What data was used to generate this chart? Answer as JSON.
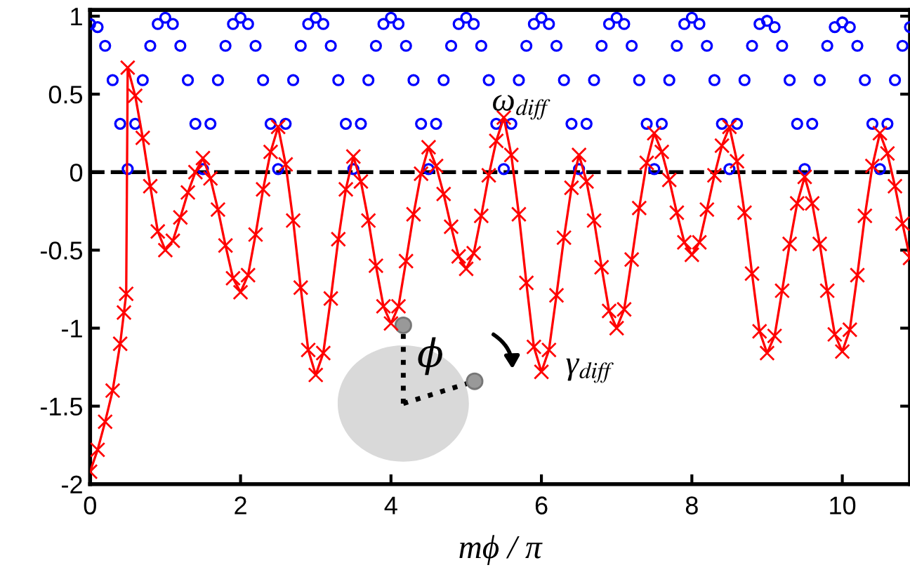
{
  "chart_data": {
    "type": "line",
    "xlabel": "mϕ / π",
    "xlim": [
      0,
      10.9
    ],
    "ylim": [
      -2,
      1.04
    ],
    "xticks": [
      0,
      2,
      4,
      6,
      8,
      10
    ],
    "yticks": [
      -2,
      -1.5,
      -1,
      -0.5,
      0,
      0.5,
      1
    ],
    "grid": false,
    "legend": false,
    "series": [
      {
        "type": "scatter",
        "marker": "circle",
        "color": "#0000ff",
        "x": [
          0,
          0.1,
          0.2,
          0.3,
          0.4,
          0.5,
          0.6,
          0.7,
          0.8,
          0.9,
          1,
          1.1,
          1.2,
          1.3,
          1.4,
          1.5,
          1.6,
          1.7,
          1.8,
          1.9,
          2,
          2.1,
          2.2,
          2.3,
          2.4,
          2.5,
          2.6,
          2.7,
          2.8,
          2.9,
          3,
          3.1,
          3.2,
          3.3,
          3.4,
          3.5,
          3.6,
          3.7,
          3.8,
          3.9,
          4,
          4.1,
          4.2,
          4.3,
          4.4,
          4.5,
          4.6,
          4.7,
          4.8,
          4.9,
          5,
          5.1,
          5.2,
          5.3,
          5.4,
          5.5,
          5.6,
          5.7,
          5.8,
          5.9,
          6,
          6.1,
          6.2,
          6.3,
          6.4,
          6.5,
          6.6,
          6.7,
          6.8,
          6.9,
          7,
          7.1,
          7.2,
          7.3,
          7.4,
          7.5,
          7.6,
          7.7,
          7.8,
          7.9,
          8,
          8.1,
          8.2,
          8.3,
          8.4,
          8.5,
          8.6,
          8.7,
          8.8,
          8.9,
          9,
          9.1,
          9.2,
          9.3,
          9.4,
          9.5,
          9.6,
          9.7,
          9.8,
          9.9,
          10,
          10.1,
          10.2,
          10.3,
          10.4,
          10.5,
          10.6,
          10.7,
          10.8,
          10.9
        ],
        "values": [
          0.95,
          0.93,
          0.81,
          0.59,
          0.31,
          0.02,
          0.31,
          0.59,
          0.81,
          0.95,
          0.99,
          0.95,
          0.81,
          0.59,
          0.31,
          0.02,
          0.31,
          0.59,
          0.81,
          0.95,
          0.99,
          0.95,
          0.81,
          0.59,
          0.31,
          0.02,
          0.31,
          0.59,
          0.81,
          0.95,
          0.99,
          0.95,
          0.81,
          0.59,
          0.31,
          0.02,
          0.31,
          0.59,
          0.81,
          0.95,
          0.99,
          0.95,
          0.81,
          0.59,
          0.31,
          0.02,
          0.31,
          0.59,
          0.81,
          0.95,
          0.99,
          0.95,
          0.81,
          0.59,
          0.31,
          0.02,
          0.31,
          0.59,
          0.81,
          0.95,
          0.99,
          0.95,
          0.81,
          0.59,
          0.31,
          0.02,
          0.31,
          0.59,
          0.81,
          0.95,
          0.99,
          0.95,
          0.81,
          0.59,
          0.31,
          0.02,
          0.31,
          0.59,
          0.81,
          0.95,
          0.99,
          0.95,
          0.81,
          0.59,
          0.31,
          0.02,
          0.31,
          0.59,
          0.81,
          0.95,
          0.97,
          0.93,
          0.81,
          0.59,
          0.31,
          0.02,
          0.31,
          0.59,
          0.81,
          0.93,
          0.96,
          0.93,
          0.81,
          0.59,
          0.31,
          0.02,
          0.31,
          0.59,
          0.81,
          0.93
        ]
      },
      {
        "marker": "cross",
        "line_style": "solid",
        "color": "#ff0000",
        "x": [
          0,
          0.1,
          0.2,
          0.3,
          0.4,
          0.45,
          0.48,
          0.5,
          0.6,
          0.7,
          0.8,
          0.9,
          1,
          1.1,
          1.2,
          1.3,
          1.4,
          1.5,
          1.6,
          1.7,
          1.8,
          1.9,
          2,
          2.1,
          2.2,
          2.3,
          2.4,
          2.5,
          2.6,
          2.7,
          2.8,
          2.9,
          3,
          3.1,
          3.2,
          3.3,
          3.4,
          3.5,
          3.6,
          3.7,
          3.8,
          3.9,
          4,
          4.1,
          4.2,
          4.3,
          4.4,
          4.5,
          4.6,
          4.7,
          4.8,
          4.9,
          5,
          5.1,
          5.2,
          5.3,
          5.4,
          5.5,
          5.6,
          5.7,
          5.8,
          5.9,
          6,
          6.1,
          6.2,
          6.3,
          6.4,
          6.5,
          6.6,
          6.7,
          6.8,
          6.9,
          7,
          7.1,
          7.2,
          7.3,
          7.4,
          7.5,
          7.6,
          7.7,
          7.8,
          7.9,
          8,
          8.1,
          8.2,
          8.3,
          8.4,
          8.5,
          8.6,
          8.7,
          8.8,
          8.9,
          9,
          9.1,
          9.2,
          9.3,
          9.4,
          9.5,
          9.6,
          9.7,
          9.8,
          9.9,
          10,
          10.1,
          10.2,
          10.3,
          10.4,
          10.5,
          10.6,
          10.7,
          10.8,
          10.9
        ],
        "values": [
          -1.92,
          -1.78,
          -1.6,
          -1.4,
          -1.1,
          -0.9,
          -0.78,
          0.67,
          0.49,
          0.22,
          -0.09,
          -0.38,
          -0.5,
          -0.44,
          -0.29,
          -0.13,
          0.0,
          0.09,
          -0.04,
          -0.24,
          -0.47,
          -0.68,
          -0.77,
          -0.66,
          -0.4,
          -0.11,
          0.13,
          0.29,
          0.05,
          -0.31,
          -0.74,
          -1.14,
          -1.3,
          -1.16,
          -0.81,
          -0.43,
          -0.11,
          0.1,
          -0.06,
          -0.31,
          -0.6,
          -0.86,
          -0.97,
          -0.86,
          -0.57,
          -0.27,
          -0.01,
          0.16,
          0.04,
          -0.14,
          -0.35,
          -0.54,
          -0.62,
          -0.52,
          -0.28,
          -0.02,
          0.2,
          0.35,
          0.11,
          -0.27,
          -0.71,
          -1.12,
          -1.28,
          -1.14,
          -0.79,
          -0.42,
          -0.1,
          0.11,
          -0.06,
          -0.31,
          -0.61,
          -0.89,
          -1.0,
          -0.88,
          -0.56,
          -0.23,
          0.06,
          0.25,
          0.13,
          -0.05,
          -0.26,
          -0.45,
          -0.53,
          -0.45,
          -0.24,
          -0.02,
          0.17,
          0.29,
          0.07,
          -0.26,
          -0.65,
          -1.02,
          -1.16,
          -1.05,
          -0.76,
          -0.46,
          -0.2,
          -0.03,
          -0.2,
          -0.46,
          -0.76,
          -1.04,
          -1.15,
          -1.01,
          -0.66,
          -0.28,
          0.04,
          0.25,
          0.12,
          -0.09,
          -0.33,
          -0.55
        ]
      }
    ],
    "ref_lines": [
      {
        "axis": "y",
        "value": 0,
        "color": "#000000",
        "line_style": "dashed"
      }
    ],
    "annotations": [
      "ω$_{diff}$",
      "γ$_{diff}$",
      "ϕ"
    ]
  }
}
